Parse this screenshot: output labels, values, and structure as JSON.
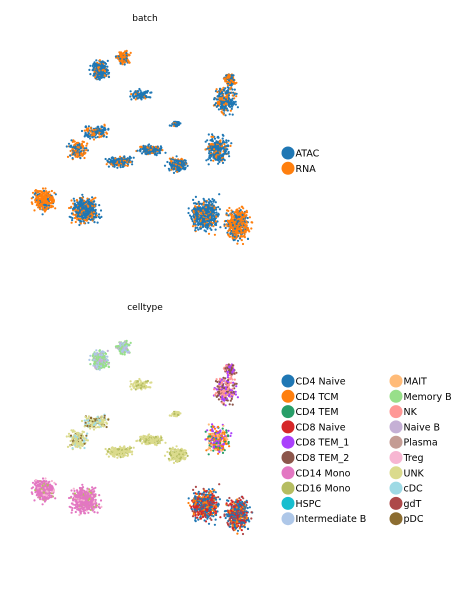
{
  "panels": [
    {
      "title": "batch",
      "legend": [
        {
          "label": "ATAC",
          "color": "#1f77b4"
        },
        {
          "label": "RNA",
          "color": "#ff7f0e"
        }
      ]
    },
    {
      "title": "celltype",
      "legend": [
        {
          "label": "CD4 Naive",
          "color": "#1f77b4"
        },
        {
          "label": "CD4 TCM",
          "color": "#ff7f0e"
        },
        {
          "label": "CD4 TEM",
          "color": "#279e68"
        },
        {
          "label": "CD8 Naive",
          "color": "#d62728"
        },
        {
          "label": "CD8 TEM_1",
          "color": "#aa40fc"
        },
        {
          "label": "CD8 TEM_2",
          "color": "#8c564b"
        },
        {
          "label": "CD14 Mono",
          "color": "#e377c2"
        },
        {
          "label": "CD16 Mono",
          "color": "#b5bd61"
        },
        {
          "label": "HSPC",
          "color": "#17becf"
        },
        {
          "label": "Intermediate B",
          "color": "#aec7e8"
        },
        {
          "label": "MAIT",
          "color": "#ffbb78"
        },
        {
          "label": "Memory B",
          "color": "#98df8a"
        },
        {
          "label": "NK",
          "color": "#ff9896"
        },
        {
          "label": "Naive B",
          "color": "#c5b0d5"
        },
        {
          "label": "Plasma",
          "color": "#c49c94"
        },
        {
          "label": "Treg",
          "color": "#f7b6d2"
        },
        {
          "label": "UNK",
          "color": "#dbdb8d"
        },
        {
          "label": "cDC",
          "color": "#9edae5"
        },
        {
          "label": "gdT",
          "color": "#ad494a"
        },
        {
          "label": "pDC",
          "color": "#8c6d31"
        }
      ]
    }
  ],
  "chart_data": [
    {
      "type": "scatter",
      "title": "batch",
      "legend_placement": "right",
      "grid": false,
      "axes_visible": false,
      "series": [
        {
          "name": "ATAC",
          "color": "#1f77b4"
        },
        {
          "name": "RNA",
          "color": "#ff7f0e"
        }
      ]
    },
    {
      "type": "scatter",
      "title": "celltype",
      "legend_placement": "right",
      "grid": false,
      "axes_visible": false,
      "series": [
        {
          "name": "CD4 Naive"
        },
        {
          "name": "CD4 TCM"
        },
        {
          "name": "CD4 TEM"
        },
        {
          "name": "CD8 Naive"
        },
        {
          "name": "CD8 TEM_1"
        },
        {
          "name": "CD8 TEM_2"
        },
        {
          "name": "CD14 Mono"
        },
        {
          "name": "CD16 Mono"
        },
        {
          "name": "HSPC"
        },
        {
          "name": "Intermediate B"
        },
        {
          "name": "MAIT"
        },
        {
          "name": "Memory B"
        },
        {
          "name": "NK"
        },
        {
          "name": "Naive B"
        },
        {
          "name": "Plasma"
        },
        {
          "name": "Treg"
        },
        {
          "name": "UNK"
        },
        {
          "name": "cDC"
        },
        {
          "name": "gdT"
        },
        {
          "name": "pDC"
        }
      ]
    }
  ]
}
